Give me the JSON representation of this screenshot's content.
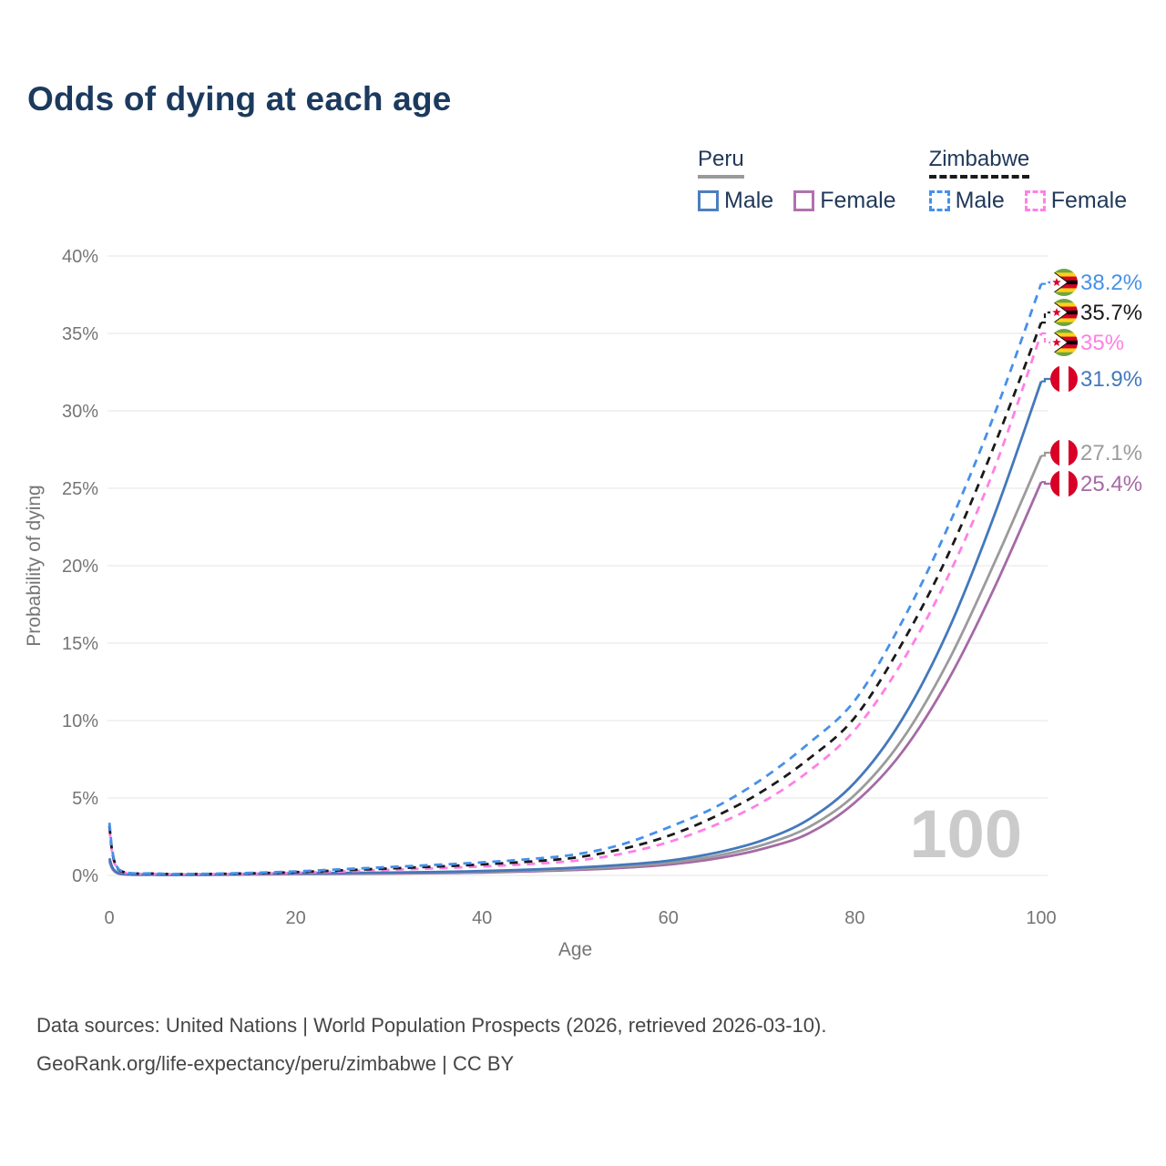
{
  "title": "Odds of dying at each age",
  "watermark": "100",
  "legend": {
    "groups": [
      {
        "label": "Peru",
        "line_style": "solid",
        "underline_color": "#9a9a9a",
        "items": [
          {
            "label": "Male",
            "color": "#4c7fbe",
            "dash": false
          },
          {
            "label": "Female",
            "color": "#b171ac",
            "dash": false
          }
        ]
      },
      {
        "label": "Zimbabwe",
        "line_style": "dashed",
        "underline_color": "#1a1a1a",
        "items": [
          {
            "label": "Male",
            "color": "#4690ea",
            "dash": true
          },
          {
            "label": "Female",
            "color": "#ff80e6",
            "dash": true
          }
        ]
      }
    ]
  },
  "chart_data": {
    "type": "line",
    "title": "Odds of dying at each age",
    "xlabel": "Age",
    "ylabel": "Probability of dying",
    "xlim": [
      0,
      100
    ],
    "ylim": [
      0,
      40
    ],
    "y_unit": "%",
    "grid": "horizontal",
    "y_ticks": [
      "0%",
      "5%",
      "10%",
      "15%",
      "20%",
      "25%",
      "30%",
      "35%",
      "40%"
    ],
    "x_ticks": [
      "0",
      "20",
      "40",
      "60",
      "80",
      "100"
    ],
    "x": [
      0,
      1,
      5,
      10,
      15,
      20,
      25,
      30,
      35,
      40,
      45,
      50,
      55,
      60,
      65,
      70,
      75,
      80,
      85,
      90,
      95,
      100
    ],
    "series": [
      {
        "name": "Zimbabwe Male",
        "country": "Zimbabwe",
        "sex": "Male",
        "flag": "zw",
        "color": "#4690ea",
        "dash": true,
        "end_label": "38.2%",
        "label_color": "#4690ea",
        "values": [
          3.4,
          0.4,
          0.12,
          0.1,
          0.16,
          0.26,
          0.4,
          0.54,
          0.68,
          0.84,
          1.05,
          1.35,
          2.0,
          3.1,
          4.4,
          6.2,
          8.5,
          11.3,
          16.3,
          22.5,
          29.8,
          38.2
        ]
      },
      {
        "name": "Zimbabwe Both sexes",
        "country": "Zimbabwe",
        "sex": "Both",
        "flag": "zw",
        "color": "#1a1a1a",
        "dash": true,
        "end_label": "35.7%",
        "label_color": "#1a1a1a",
        "values": [
          3.2,
          0.37,
          0.11,
          0.09,
          0.13,
          0.21,
          0.33,
          0.45,
          0.57,
          0.71,
          0.89,
          1.15,
          1.7,
          2.55,
          3.8,
          5.4,
          7.5,
          10.2,
          14.9,
          20.7,
          27.8,
          35.7
        ]
      },
      {
        "name": "Zimbabwe Female",
        "country": "Zimbabwe",
        "sex": "Female",
        "flag": "zw",
        "color": "#ff80e6",
        "dash": true,
        "end_label": "35%",
        "label_color": "#ff80e6",
        "values": [
          3.0,
          0.34,
          0.1,
          0.08,
          0.11,
          0.17,
          0.26,
          0.36,
          0.46,
          0.58,
          0.73,
          0.95,
          1.4,
          2.15,
          3.25,
          4.7,
          6.7,
          9.4,
          13.7,
          19.3,
          26.3,
          35.0
        ]
      },
      {
        "name": "Peru Male",
        "country": "Peru",
        "sex": "Male",
        "flag": "pe",
        "color": "#4478bb",
        "dash": false,
        "end_label": "31.9%",
        "label_color": "#4478bb",
        "values": [
          1.1,
          0.15,
          0.05,
          0.05,
          0.1,
          0.14,
          0.16,
          0.18,
          0.22,
          0.28,
          0.37,
          0.5,
          0.68,
          0.95,
          1.45,
          2.25,
          3.6,
          6.0,
          10.0,
          15.8,
          23.3,
          31.9
        ]
      },
      {
        "name": "Peru Both sexes",
        "country": "Peru",
        "sex": "Both",
        "flag": "pe",
        "color": "#9b9b9b",
        "dash": false,
        "end_label": "27.1%",
        "label_color": "#9b9b9b",
        "values": [
          1.0,
          0.13,
          0.05,
          0.04,
          0.08,
          0.11,
          0.13,
          0.15,
          0.18,
          0.23,
          0.31,
          0.42,
          0.58,
          0.82,
          1.25,
          1.95,
          3.1,
          5.2,
          8.7,
          13.8,
          20.2,
          27.1
        ]
      },
      {
        "name": "Peru Female",
        "country": "Peru",
        "sex": "Female",
        "flag": "pe",
        "color": "#a56aa5",
        "dash": false,
        "end_label": "25.4%",
        "label_color": "#a56aa5",
        "values": [
          0.9,
          0.12,
          0.04,
          0.03,
          0.06,
          0.08,
          0.1,
          0.12,
          0.15,
          0.19,
          0.26,
          0.35,
          0.49,
          0.7,
          1.08,
          1.7,
          2.7,
          4.7,
          7.9,
          12.6,
          18.6,
          25.4
        ]
      }
    ],
    "legend_position": "top-right"
  },
  "footer": {
    "line1": "Data sources: United Nations | World Population Prospects (2026, retrieved 2026-03-10).",
    "line2": "GeoRank.org/life-expectancy/peru/zimbabwe | CC BY"
  }
}
